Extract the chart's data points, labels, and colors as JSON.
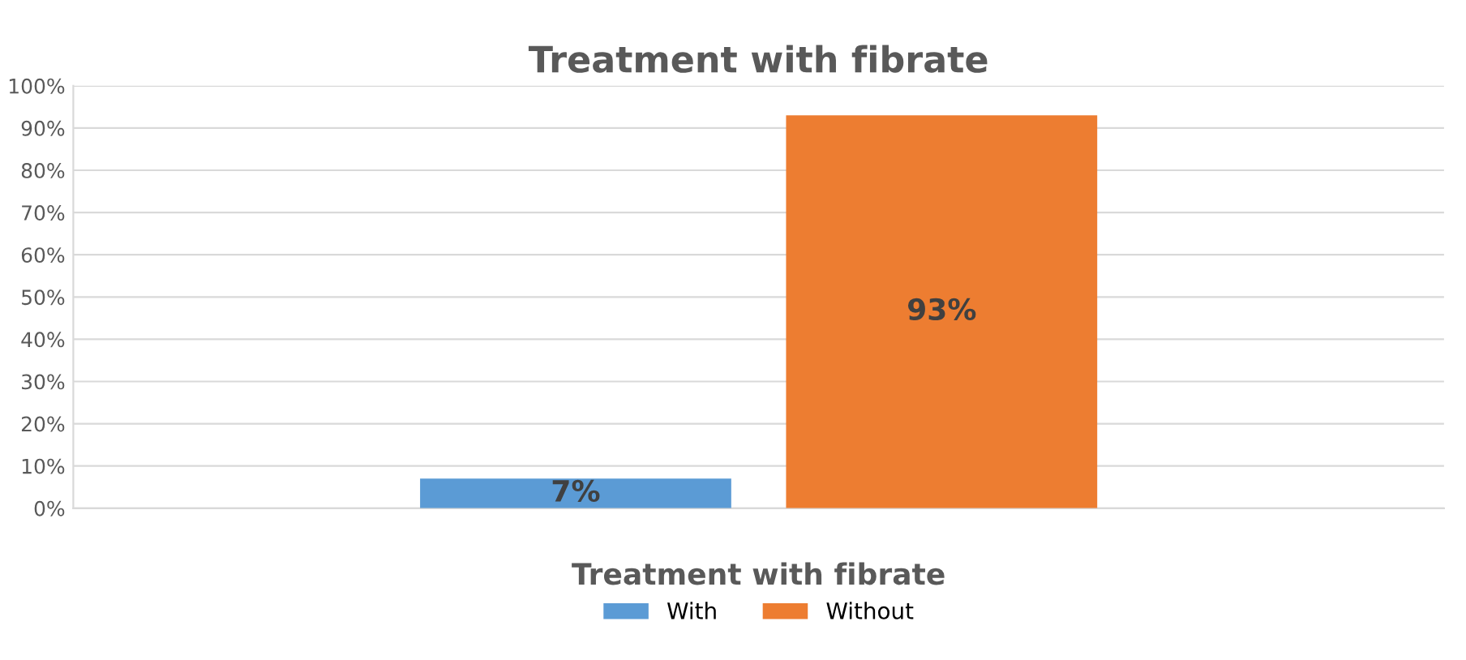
{
  "chart_data": {
    "type": "bar",
    "title": "Treatment with fibrate",
    "legend_title": "Treatment with fibrate",
    "categories": [
      null
    ],
    "series": [
      {
        "name": "With",
        "color": "#5b9bd5",
        "values": [
          7
        ],
        "value_labels": [
          "7%"
        ]
      },
      {
        "name": "Without",
        "color": "#ed7d31",
        "values": [
          93
        ],
        "value_labels": [
          "93%"
        ]
      }
    ],
    "ylim": [
      0,
      100
    ],
    "yticks": [
      {
        "value": 0,
        "label": "0%"
      },
      {
        "value": 10,
        "label": "10%"
      },
      {
        "value": 20,
        "label": "20%"
      },
      {
        "value": 30,
        "label": "30%"
      },
      {
        "value": 40,
        "label": "40%"
      },
      {
        "value": 50,
        "label": "50%"
      },
      {
        "value": 60,
        "label": "60%"
      },
      {
        "value": 70,
        "label": "70%"
      },
      {
        "value": 80,
        "label": "80%"
      },
      {
        "value": 90,
        "label": "90%"
      },
      {
        "value": 100,
        "label": "100%"
      }
    ],
    "grid": "y",
    "legend": "bottom",
    "tick_labels": "y"
  }
}
